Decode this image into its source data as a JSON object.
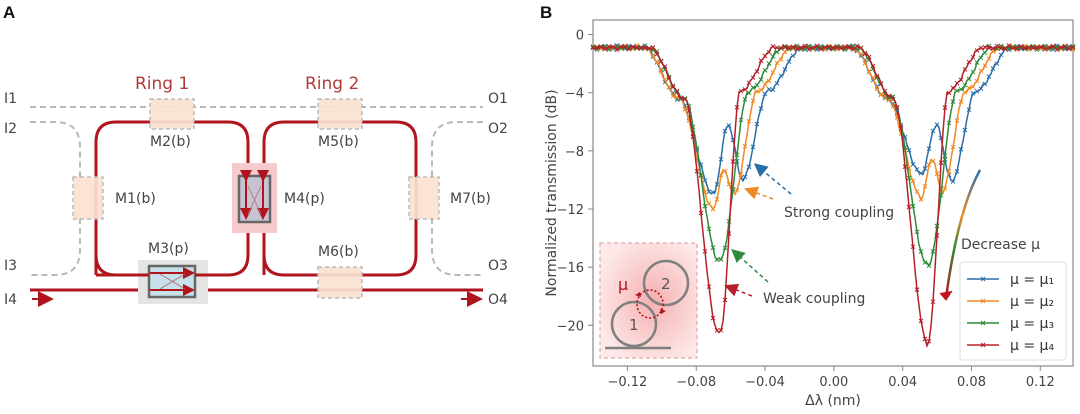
{
  "panel_a": {
    "letter": "A",
    "rings": [
      "Ring 1",
      "Ring 2"
    ],
    "inputs": [
      "I1",
      "I2",
      "I3",
      "I4"
    ],
    "outputs": [
      "O1",
      "O2",
      "O3",
      "O4"
    ],
    "modules": {
      "M1": "M1(b)",
      "M2": "M2(b)",
      "M3": "M3(p)",
      "M4": "M4(p)",
      "M5": "M5(b)",
      "M6": "M6(b)",
      "M7": "M7(b)"
    },
    "colors": {
      "waveguide": "#b0141c",
      "unused": "#b8b8b8",
      "module_fill": "#fbe1d2"
    }
  },
  "panel_b": {
    "letter": "B",
    "annotations": {
      "strong": "Strong coupling",
      "weak": "Weak coupling",
      "decrease": "Decrease μ"
    },
    "inset": {
      "mu": "μ",
      "ring1": "1",
      "ring2": "2"
    }
  },
  "chart_data": {
    "type": "line",
    "title": "",
    "xlabel": "Δλ (nm)",
    "ylabel": "Normalized transmission (dB)",
    "xlim": [
      -0.14,
      0.139
    ],
    "ylim": [
      -22.8,
      1.0
    ],
    "xticks": [
      -0.12,
      -0.08,
      -0.04,
      0.0,
      0.04,
      0.08,
      0.12
    ],
    "xtick_labels": [
      "−0.12",
      "−0.08",
      "−0.04",
      "0.00",
      "0.04",
      "0.08",
      "0.12"
    ],
    "yticks": [
      0,
      -4,
      -8,
      -12,
      -16,
      -20
    ],
    "ytick_labels": [
      "0",
      "−4",
      "−8",
      "−12",
      "−16",
      "−20"
    ],
    "grid": false,
    "legend_position": "bottom-right",
    "dip_centers": [
      -0.0665,
      0.0545
    ],
    "series": [
      {
        "name": "μ = μ₁",
        "color": "#2a6ea8",
        "dip": {
          "a_min": -11.0,
          "a_off": -0.0035,
          "peak": -6.2,
          "peak_off": 0.005,
          "b_min": -10.0,
          "b_off": 0.0135,
          "rise_off": 0.028
        },
        "dip2": {
          "a_min": -9.6,
          "a_off": -0.0035,
          "peak": -6.2,
          "peak_off": 0.005,
          "b_min": -10.1,
          "b_off": 0.014,
          "rise_off": 0.028
        }
      },
      {
        "name": "μ = μ₂",
        "color": "#f08a24",
        "dip": {
          "a_min": -12.0,
          "a_off": -0.0035,
          "peak": -9.3,
          "peak_off": 0.0025,
          "b_min": -11.0,
          "b_off": 0.0085,
          "rise_off": 0.022
        },
        "dip2": {
          "a_min": -11.2,
          "a_off": -0.0035,
          "peak": -8.5,
          "peak_off": 0.0025,
          "b_min": -10.8,
          "b_off": 0.0085,
          "rise_off": 0.022
        }
      },
      {
        "name": "μ = μ₃",
        "color": "#2e8b3a",
        "dip": {
          "a_min": -15.5,
          "a_off": -0.0005,
          "peak": -15.5,
          "peak_off": 0.0,
          "b_min": -15.5,
          "b_off": 0.0005,
          "rise_off": 0.017
        },
        "dip2": {
          "a_min": -15.8,
          "a_off": -0.0005,
          "peak": -15.8,
          "peak_off": 0.0,
          "b_min": -15.8,
          "b_off": 0.0005,
          "rise_off": 0.017
        }
      },
      {
        "name": "μ = μ₄",
        "color": "#b5202a",
        "dip": {
          "a_min": -20.5,
          "a_off": -0.0005,
          "peak": -20.5,
          "peak_off": 0.0,
          "b_min": -20.5,
          "b_off": 0.0005,
          "rise_off": 0.012
        },
        "dip2": {
          "a_min": -21.3,
          "a_off": 0.0,
          "peak": -21.3,
          "peak_off": 0.0,
          "b_min": -21.3,
          "b_off": 0.0,
          "rise_off": 0.012
        }
      }
    ],
    "baseline_db": -0.9
  }
}
